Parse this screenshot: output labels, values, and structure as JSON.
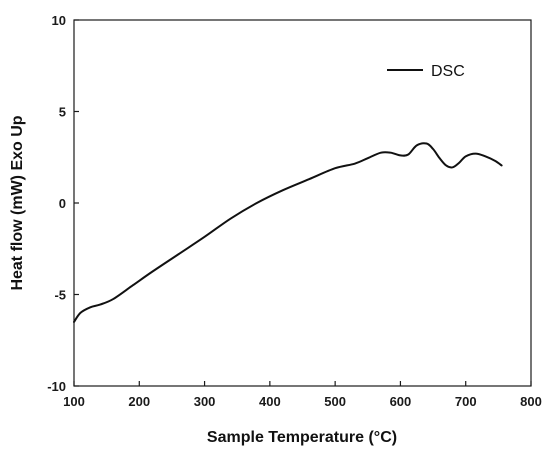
{
  "chart_data": {
    "type": "line",
    "xlabel": "Sample Temperature (°C)",
    "ylabel": "Heat flow (mW) Exo Up",
    "xlim": [
      100,
      800
    ],
    "ylim": [
      -10,
      10
    ],
    "x_ticks": [
      100,
      200,
      300,
      400,
      500,
      600,
      700,
      800
    ],
    "y_ticks": [
      -10,
      -5,
      0,
      5,
      10
    ],
    "grid": false,
    "legend_position": "top-right",
    "line_color": "#111111",
    "series": [
      {
        "name": "DSC",
        "x": [
          100,
          110,
          125,
          140,
          160,
          190,
          220,
          260,
          300,
          340,
          380,
          420,
          460,
          500,
          530,
          550,
          570,
          585,
          600,
          612,
          625,
          640,
          650,
          660,
          670,
          680,
          690,
          700,
          715,
          730,
          745,
          755
        ],
        "y": [
          -6.5,
          -6.0,
          -5.7,
          -5.55,
          -5.25,
          -4.5,
          -3.75,
          -2.8,
          -1.85,
          -0.85,
          0.0,
          0.7,
          1.3,
          1.9,
          2.15,
          2.45,
          2.75,
          2.75,
          2.6,
          2.65,
          3.15,
          3.25,
          2.95,
          2.45,
          2.05,
          1.95,
          2.2,
          2.55,
          2.7,
          2.55,
          2.3,
          2.05
        ]
      }
    ]
  }
}
